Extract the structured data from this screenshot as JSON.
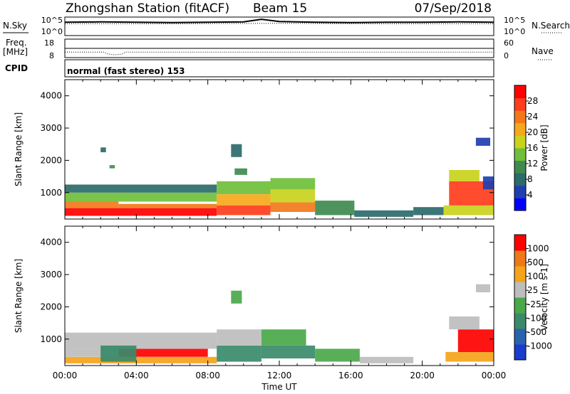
{
  "header": {
    "station": "Zhongshan Station (fitACF)",
    "beam": "Beam 15",
    "date": "07/Sep/2018"
  },
  "panels": {
    "nsky_label": "N.Sky",
    "nsearch_label": "N.Search",
    "nsky_ticks": [
      "10^5",
      "10^0"
    ],
    "nsearch_ticks": [
      "10^5",
      "10^0"
    ],
    "freq_label": "Freq.",
    "freq_unit": "[MHz]",
    "freq_ticks": [
      "18",
      "8"
    ],
    "nave_label": "Nave",
    "nave_ticks": [
      "60",
      "0"
    ],
    "cpid_label": "CPID",
    "cpid_text": "normal (fast stereo) 153"
  },
  "axes": {
    "ylabel": "Slant Range [km]",
    "yticks": [
      "4000",
      "3000",
      "2000",
      "1000"
    ],
    "xticks": [
      "00:00",
      "04:00",
      "08:00",
      "12:00",
      "16:00",
      "20:00",
      "00:00"
    ],
    "xlabel": "Time UT"
  },
  "colorbars": {
    "power": {
      "label": "Power [dB]",
      "ticks": [
        "28",
        "24",
        "20",
        "16",
        "12",
        "8",
        "4"
      ],
      "colors": [
        "#0000ff",
        "#1f3fb0",
        "#2d6a6a",
        "#3f8a4f",
        "#6fbf3a",
        "#c9d21c",
        "#f6a81c",
        "#f3781b",
        "#ff3d1c",
        "#ff0000"
      ]
    },
    "velocity": {
      "label": "Velocity [m s-1]",
      "ticks": [
        "1000",
        "500",
        "100",
        "25",
        "-25",
        "-100",
        "-500",
        "-1000"
      ],
      "colors": [
        "#1a3ccd",
        "#2a62b0",
        "#3a8a6a",
        "#4aa84a",
        "#bdbdbd",
        "#f5a31a",
        "#f07818",
        "#ff0000"
      ]
    }
  },
  "chart_data": [
    {
      "type": "line",
      "title": "N.Sky / N.Search",
      "x_range": [
        0,
        24
      ],
      "ylim_log10": [
        0,
        5
      ],
      "series": [
        {
          "name": "N.Sky",
          "x": [
            0,
            2,
            4,
            6,
            8,
            10,
            11,
            12,
            14,
            16,
            18,
            20,
            22,
            24
          ],
          "y": [
            3.6,
            3.7,
            3.6,
            3.5,
            3.6,
            3.7,
            4.4,
            3.8,
            3.6,
            3.5,
            3.6,
            3.6,
            3.7,
            3.6
          ]
        },
        {
          "name": "N.Search",
          "x": [
            0,
            6,
            12,
            18,
            24
          ],
          "y": [
            3.2,
            3.2,
            3.3,
            3.2,
            3.2
          ]
        }
      ]
    },
    {
      "type": "line",
      "title": "Freq. / Nave",
      "x_range": [
        0,
        24
      ],
      "series": [
        {
          "name": "Freq. [MHz]",
          "x": [
            0,
            2.2,
            2.4,
            2.8,
            3.2,
            3.4,
            24
          ],
          "y": [
            11,
            11,
            10,
            9.5,
            10,
            11,
            11
          ]
        },
        {
          "name": "Nave",
          "x": [
            0,
            24
          ],
          "y": [
            30,
            30
          ]
        }
      ]
    },
    {
      "type": "heatmap",
      "title": "Power [dB]",
      "x_range": [
        0,
        24
      ],
      "ylim": [
        180,
        4500
      ],
      "clim": [
        0,
        30
      ],
      "cells": [
        {
          "t0": 0.0,
          "t1": 8.5,
          "r0": 280,
          "r1": 520,
          "v": 28
        },
        {
          "t0": 0.0,
          "t1": 3.0,
          "r0": 520,
          "r1": 720,
          "v": 22
        },
        {
          "t0": 3.0,
          "t1": 8.5,
          "r0": 520,
          "r1": 650,
          "v": 23
        },
        {
          "t0": 0.0,
          "t1": 8.5,
          "r0": 720,
          "r1": 1000,
          "v": 12
        },
        {
          "t0": 0.0,
          "t1": 8.5,
          "r0": 1000,
          "r1": 1250,
          "v": 8
        },
        {
          "t0": 8.5,
          "t1": 11.5,
          "r0": 300,
          "r1": 600,
          "v": 26
        },
        {
          "t0": 8.5,
          "t1": 11.5,
          "r0": 600,
          "r1": 950,
          "v": 19
        },
        {
          "t0": 8.5,
          "t1": 11.5,
          "r0": 950,
          "r1": 1350,
          "v": 14
        },
        {
          "t0": 11.5,
          "t1": 14.0,
          "r0": 400,
          "r1": 700,
          "v": 21
        },
        {
          "t0": 11.5,
          "t1": 14.0,
          "r0": 700,
          "r1": 1100,
          "v": 16
        },
        {
          "t0": 11.5,
          "t1": 14.0,
          "r0": 1100,
          "r1": 1450,
          "v": 12
        },
        {
          "t0": 14.0,
          "t1": 16.2,
          "r0": 300,
          "r1": 750,
          "v": 9
        },
        {
          "t0": 16.2,
          "t1": 19.5,
          "r0": 250,
          "r1": 450,
          "v": 6
        },
        {
          "t0": 19.5,
          "t1": 21.2,
          "r0": 300,
          "r1": 550,
          "v": 8
        },
        {
          "t0": 21.2,
          "t1": 24.0,
          "r0": 300,
          "r1": 600,
          "v": 17
        },
        {
          "t0": 21.5,
          "t1": 24.0,
          "r0": 600,
          "r1": 1350,
          "v": 24
        },
        {
          "t0": 21.5,
          "t1": 23.2,
          "r0": 1350,
          "r1": 1700,
          "v": 16
        },
        {
          "t0": 23.4,
          "t1": 24.0,
          "r0": 1100,
          "r1": 1500,
          "v": 5
        },
        {
          "t0": 9.3,
          "t1": 9.9,
          "r0": 2100,
          "r1": 2500,
          "v": 7
        },
        {
          "t0": 9.5,
          "t1": 10.2,
          "r0": 1550,
          "r1": 1750,
          "v": 9
        },
        {
          "t0": 23.0,
          "t1": 23.8,
          "r0": 2450,
          "r1": 2700,
          "v": 4
        },
        {
          "t0": 2.0,
          "t1": 2.3,
          "r0": 2250,
          "r1": 2400,
          "v": 6
        },
        {
          "t0": 2.5,
          "t1": 2.8,
          "r0": 1750,
          "r1": 1850,
          "v": 10
        }
      ]
    },
    {
      "type": "heatmap",
      "title": "Velocity [m s-1]",
      "x_range": [
        0,
        24
      ],
      "ylim": [
        180,
        4500
      ],
      "clim": [
        -1000,
        1000
      ],
      "cells": [
        {
          "t0": 0.0,
          "t1": 8.5,
          "r0": 250,
          "r1": 450,
          "v": 300
        },
        {
          "t0": 3.0,
          "t1": 8.0,
          "r0": 450,
          "r1": 700,
          "v": 1000
        },
        {
          "t0": 0.0,
          "t1": 3.0,
          "r0": 450,
          "r1": 700,
          "v": 150
        },
        {
          "t0": 0.0,
          "t1": 8.5,
          "r0": 700,
          "r1": 1200,
          "v": 150
        },
        {
          "t0": 2.0,
          "t1": 4.0,
          "r0": 300,
          "r1": 800,
          "v": -300
        },
        {
          "t0": 8.5,
          "t1": 11.0,
          "r0": 300,
          "r1": 800,
          "v": -500
        },
        {
          "t0": 8.5,
          "t1": 11.0,
          "r0": 800,
          "r1": 1300,
          "v": 100
        },
        {
          "t0": 11.0,
          "t1": 14.0,
          "r0": 400,
          "r1": 800,
          "v": -300
        },
        {
          "t0": 11.0,
          "t1": 13.5,
          "r0": 800,
          "r1": 1300,
          "v": -150
        },
        {
          "t0": 14.0,
          "t1": 16.5,
          "r0": 300,
          "r1": 700,
          "v": -120
        },
        {
          "t0": 16.5,
          "t1": 19.5,
          "r0": 250,
          "r1": 450,
          "v": 50
        },
        {
          "t0": 21.3,
          "t1": 24.0,
          "r0": 300,
          "r1": 600,
          "v": 300
        },
        {
          "t0": 22.0,
          "t1": 24.0,
          "r0": 600,
          "r1": 1300,
          "v": 800
        },
        {
          "t0": 21.5,
          "t1": 23.2,
          "r0": 1300,
          "r1": 1700,
          "v": 200
        },
        {
          "t0": 23.0,
          "t1": 23.8,
          "r0": 2450,
          "r1": 2700,
          "v": 0
        },
        {
          "t0": 9.3,
          "t1": 9.9,
          "r0": 2100,
          "r1": 2500,
          "v": -200
        }
      ]
    }
  ]
}
